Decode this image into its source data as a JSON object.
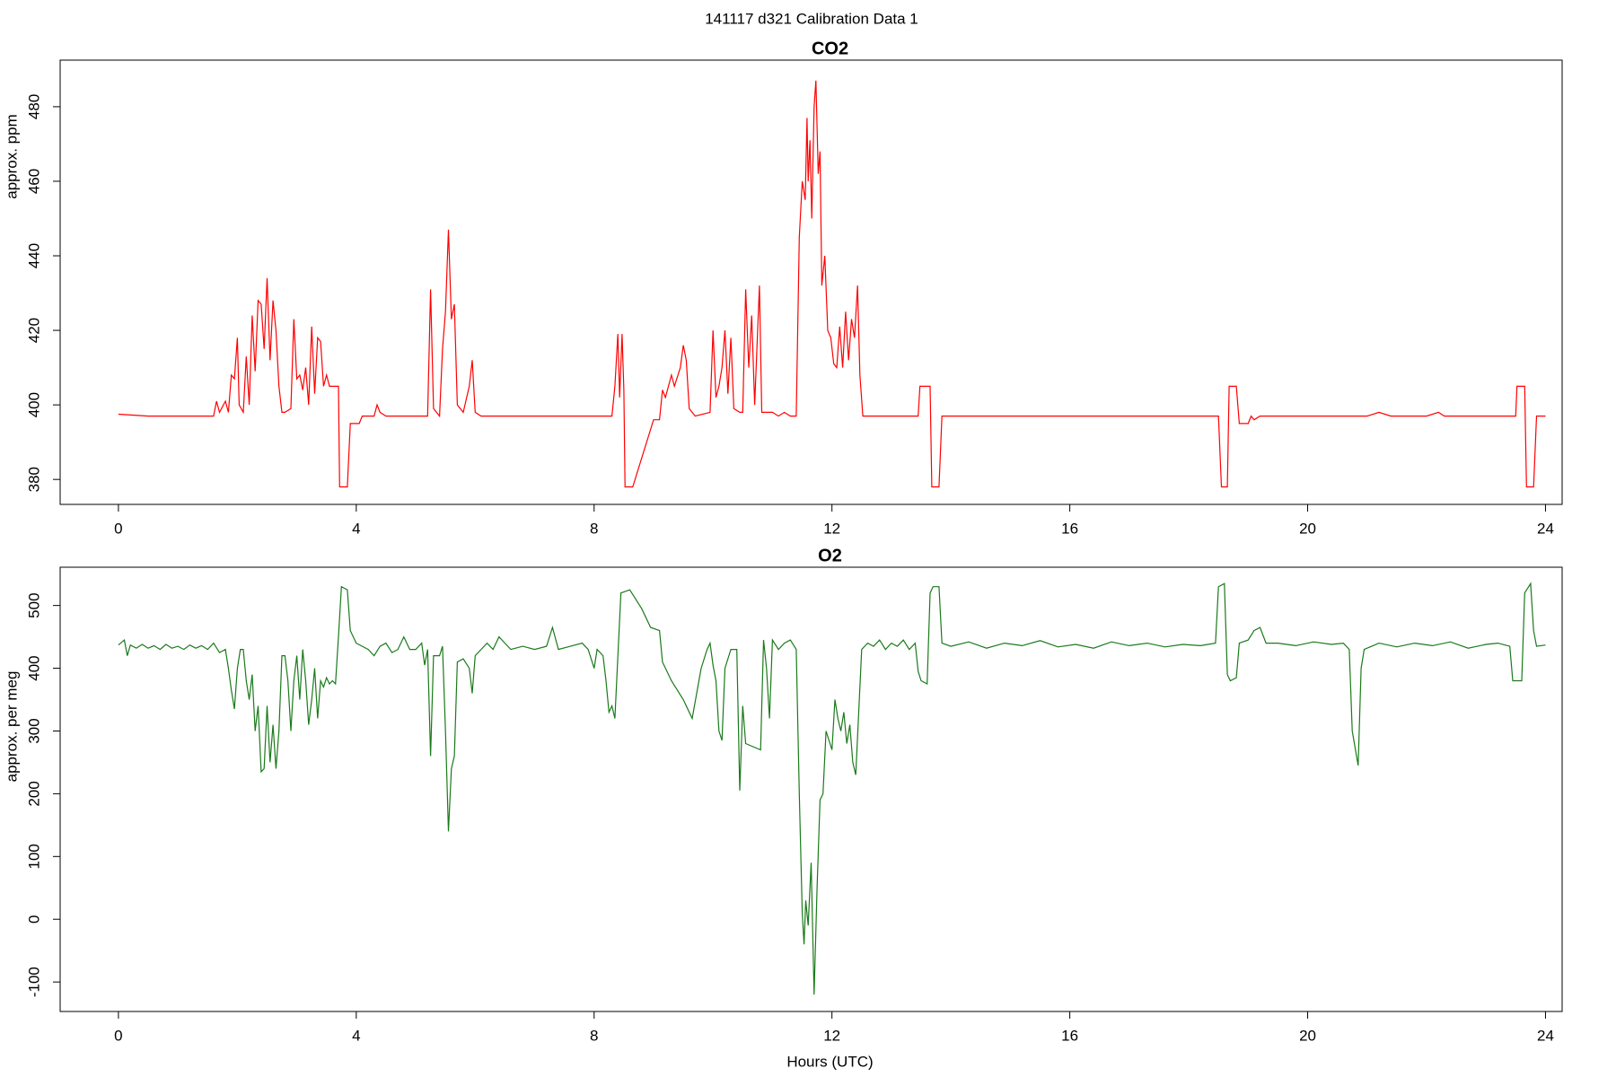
{
  "title": "141117   d321   Calibration Data 1",
  "chart_data": [
    {
      "type": "line",
      "title": "CO2",
      "ylabel": "approx. ppm",
      "color": "#ff0000",
      "xlim": [
        -0.98,
        24.28
      ],
      "xticks": [
        0,
        4,
        8,
        12,
        16,
        20,
        24
      ],
      "ylim": [
        373.3,
        492.5
      ],
      "yticks": [
        380,
        400,
        420,
        440,
        460,
        480
      ],
      "x": [
        0,
        0.5,
        1.0,
        1.5,
        1.6,
        1.65,
        1.7,
        1.8,
        1.85,
        1.9,
        1.95,
        2.0,
        2.03,
        2.1,
        2.15,
        2.2,
        2.25,
        2.3,
        2.35,
        2.4,
        2.45,
        2.5,
        2.55,
        2.6,
        2.65,
        2.7,
        2.75,
        2.8,
        2.9,
        2.95,
        3.0,
        3.05,
        3.1,
        3.15,
        3.2,
        3.25,
        3.3,
        3.35,
        3.4,
        3.45,
        3.5,
        3.55,
        3.65,
        3.7,
        3.72,
        3.85,
        3.9,
        4.05,
        4.1,
        4.3,
        4.35,
        4.4,
        4.5,
        5.2,
        5.25,
        5.3,
        5.4,
        5.45,
        5.5,
        5.55,
        5.6,
        5.65,
        5.7,
        5.8,
        5.9,
        5.95,
        6.0,
        6.1,
        7.0,
        8.0,
        8.3,
        8.35,
        8.4,
        8.43,
        8.47,
        8.5,
        8.52,
        8.65,
        9.0,
        9.1,
        9.15,
        9.2,
        9.3,
        9.35,
        9.45,
        9.5,
        9.55,
        9.6,
        9.7,
        9.95,
        10.0,
        10.05,
        10.1,
        10.15,
        10.2,
        10.25,
        10.3,
        10.35,
        10.45,
        10.5,
        10.55,
        10.6,
        10.65,
        10.7,
        10.78,
        10.82,
        10.9,
        11.0,
        11.1,
        11.2,
        11.3,
        11.4,
        11.45,
        11.5,
        11.55,
        11.58,
        11.6,
        11.63,
        11.66,
        11.7,
        11.73,
        11.77,
        11.8,
        11.83,
        11.88,
        11.93,
        11.98,
        12.03,
        12.08,
        12.13,
        12.18,
        12.23,
        12.28,
        12.33,
        12.38,
        12.43,
        12.47,
        12.52,
        13.0,
        13.45,
        13.48,
        13.65,
        13.68,
        13.8,
        13.85,
        14.5,
        15,
        16,
        17,
        18,
        18.5,
        18.55,
        18.65,
        18.68,
        18.8,
        18.85,
        19.0,
        19.05,
        19.1,
        19.2,
        20,
        21,
        21.2,
        21.4,
        22,
        22.2,
        22.3,
        23,
        23.5,
        23.52,
        23.65,
        23.68,
        23.8,
        23.85,
        24.0
      ],
      "values": [
        397.5,
        397,
        397,
        397,
        397,
        401,
        398,
        401,
        398,
        408,
        407,
        418,
        400,
        398,
        413,
        400,
        424,
        409,
        428,
        427,
        415,
        434,
        412,
        428,
        420,
        405,
        398,
        398,
        399,
        423,
        407,
        408,
        404,
        410,
        400,
        421,
        403,
        418,
        417,
        405,
        408,
        405,
        405,
        405,
        378,
        378,
        395,
        395,
        397,
        397,
        400,
        398,
        397,
        397,
        431,
        399,
        397,
        415,
        425,
        447,
        423,
        427,
        400,
        398,
        405,
        412,
        398,
        397,
        397,
        397,
        397,
        405,
        419,
        402,
        419,
        404,
        378,
        378,
        396,
        396,
        404,
        402,
        408,
        405,
        410,
        416,
        412,
        399,
        397,
        398,
        420,
        402,
        405,
        410,
        420,
        403,
        418,
        399,
        398,
        398,
        431,
        410,
        424,
        400,
        432,
        398,
        398,
        398,
        397,
        398,
        397,
        397,
        445,
        460,
        455,
        477,
        460,
        471,
        450,
        480,
        487,
        462,
        468,
        432,
        440,
        420,
        418,
        411,
        410,
        421,
        410,
        425,
        412,
        423,
        418,
        432,
        408,
        397,
        397,
        397,
        405,
        405,
        378,
        378,
        397,
        397,
        397,
        397,
        397,
        397,
        397,
        378,
        378,
        405,
        405,
        395,
        395,
        397,
        396,
        397,
        397,
        397,
        398,
        397,
        397,
        398,
        397,
        397,
        397,
        405,
        405,
        378,
        378,
        397,
        397
      ]
    },
    {
      "type": "line",
      "title": "O2",
      "ylabel": "approx. per meg",
      "xlabel": "Hours (UTC)",
      "color": "#1a7a1a",
      "xlim": [
        -0.98,
        24.28
      ],
      "xticks": [
        0,
        4,
        8,
        12,
        16,
        20,
        24
      ],
      "ylim": [
        -147,
        561
      ],
      "yticks": [
        -100,
        0,
        100,
        200,
        300,
        400,
        500
      ],
      "x": [
        0,
        0.1,
        0.15,
        0.2,
        0.3,
        0.4,
        0.5,
        0.6,
        0.7,
        0.8,
        0.9,
        1.0,
        1.1,
        1.2,
        1.3,
        1.4,
        1.5,
        1.6,
        1.7,
        1.8,
        1.85,
        1.9,
        1.95,
        2.0,
        2.05,
        2.1,
        2.15,
        2.2,
        2.25,
        2.3,
        2.35,
        2.4,
        2.45,
        2.5,
        2.55,
        2.6,
        2.65,
        2.7,
        2.75,
        2.8,
        2.85,
        2.9,
        2.95,
        3.0,
        3.05,
        3.1,
        3.15,
        3.2,
        3.25,
        3.3,
        3.35,
        3.4,
        3.45,
        3.5,
        3.55,
        3.6,
        3.65,
        3.7,
        3.75,
        3.85,
        3.9,
        4.0,
        4.1,
        4.2,
        4.3,
        4.4,
        4.5,
        4.6,
        4.7,
        4.8,
        4.9,
        5.0,
        5.1,
        5.15,
        5.2,
        5.25,
        5.3,
        5.4,
        5.45,
        5.5,
        5.55,
        5.6,
        5.65,
        5.7,
        5.8,
        5.9,
        5.95,
        6.0,
        6.1,
        6.2,
        6.3,
        6.4,
        6.5,
        6.6,
        6.8,
        7.0,
        7.2,
        7.3,
        7.4,
        7.6,
        7.8,
        7.9,
        8.0,
        8.05,
        8.15,
        8.2,
        8.25,
        8.3,
        8.35,
        8.45,
        8.6,
        8.8,
        8.95,
        9.1,
        9.15,
        9.3,
        9.5,
        9.65,
        9.8,
        9.9,
        9.95,
        10.0,
        10.05,
        10.1,
        10.15,
        10.2,
        10.3,
        10.4,
        10.45,
        10.5,
        10.55,
        10.8,
        10.85,
        10.9,
        10.95,
        11.0,
        11.1,
        11.2,
        11.3,
        11.4,
        11.45,
        11.5,
        11.53,
        11.56,
        11.6,
        11.65,
        11.7,
        11.75,
        11.8,
        11.85,
        11.9,
        12.0,
        12.05,
        12.1,
        12.15,
        12.2,
        12.25,
        12.3,
        12.35,
        12.4,
        12.45,
        12.5,
        12.6,
        12.7,
        12.8,
        12.9,
        13.0,
        13.1,
        13.2,
        13.3,
        13.4,
        13.45,
        13.5,
        13.6,
        13.65,
        13.7,
        13.8,
        13.85,
        14.0,
        14.3,
        14.6,
        14.9,
        15.2,
        15.5,
        15.8,
        16.1,
        16.4,
        16.7,
        17.0,
        17.3,
        17.6,
        17.9,
        18.2,
        18.45,
        18.5,
        18.6,
        18.65,
        18.7,
        18.8,
        18.85,
        19.0,
        19.1,
        19.2,
        19.3,
        19.5,
        19.8,
        20.1,
        20.4,
        20.6,
        20.7,
        20.75,
        20.85,
        20.9,
        20.95,
        21.2,
        21.5,
        21.8,
        22.1,
        22.4,
        22.7,
        23.0,
        23.2,
        23.4,
        23.45,
        23.6,
        23.65,
        23.75,
        23.8,
        23.85,
        24.0
      ],
      "values": [
        437,
        445,
        420,
        437,
        432,
        438,
        432,
        436,
        430,
        438,
        432,
        435,
        430,
        437,
        432,
        436,
        430,
        440,
        425,
        430,
        400,
        365,
        335,
        400,
        430,
        430,
        380,
        350,
        390,
        300,
        340,
        235,
        240,
        340,
        250,
        310,
        240,
        300,
        420,
        420,
        380,
        300,
        380,
        420,
        350,
        430,
        380,
        310,
        350,
        400,
        320,
        380,
        370,
        385,
        375,
        380,
        375,
        450,
        530,
        525,
        460,
        440,
        435,
        430,
        420,
        435,
        440,
        425,
        430,
        450,
        430,
        430,
        440,
        405,
        430,
        260,
        420,
        420,
        435,
        300,
        140,
        240,
        260,
        410,
        415,
        400,
        360,
        420,
        430,
        440,
        430,
        450,
        440,
        430,
        435,
        430,
        435,
        465,
        430,
        435,
        440,
        430,
        400,
        430,
        420,
        380,
        330,
        340,
        320,
        520,
        525,
        495,
        465,
        460,
        410,
        380,
        350,
        320,
        400,
        430,
        440,
        405,
        380,
        300,
        285,
        400,
        430,
        430,
        205,
        340,
        280,
        270,
        445,
        400,
        320,
        445,
        430,
        440,
        445,
        430,
        200,
        10,
        -40,
        30,
        -10,
        90,
        -120,
        50,
        190,
        200,
        300,
        270,
        350,
        320,
        300,
        330,
        280,
        310,
        250,
        230,
        330,
        430,
        440,
        435,
        445,
        430,
        440,
        435,
        445,
        430,
        440,
        395,
        380,
        375,
        520,
        530,
        530,
        440,
        435,
        442,
        432,
        440,
        436,
        444,
        434,
        438,
        432,
        442,
        436,
        440,
        434,
        438,
        436,
        440,
        530,
        535,
        390,
        380,
        385,
        440,
        445,
        460,
        465,
        440,
        440,
        436,
        442,
        438,
        440,
        430,
        300,
        245,
        400,
        430,
        440,
        434,
        440,
        436,
        442,
        432,
        438,
        440,
        435,
        380,
        380,
        520,
        535,
        460,
        435,
        437
      ]
    }
  ]
}
